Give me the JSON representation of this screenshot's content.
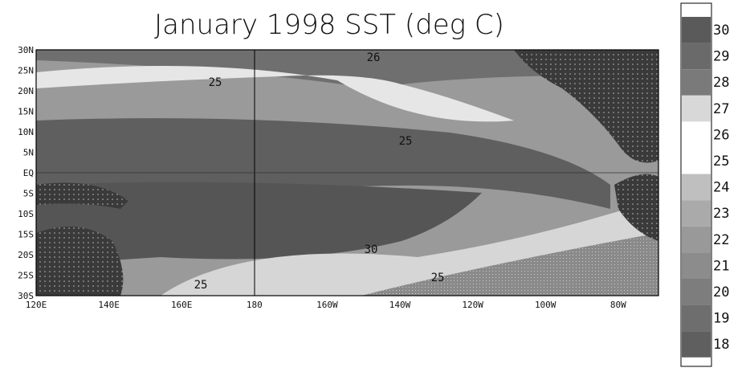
{
  "title": "January 1998 SST (deg C)",
  "lat_labels": [
    "30N",
    "25N",
    "20N",
    "15N",
    "10N",
    "5N",
    "EQ",
    "5S",
    "10S",
    "15S",
    "20S",
    "25S",
    "30S"
  ],
  "lon_labels": [
    "120E",
    "140E",
    "160E",
    "180",
    "160W",
    "140W",
    "120W",
    "100W",
    "80W"
  ],
  "colorbar_labels": [
    "30",
    "29",
    "28",
    "27",
    "26",
    "25",
    "24",
    "23",
    "22",
    "21",
    "20",
    "19",
    "18"
  ],
  "contour_labels": [
    "26",
    "25",
    "25",
    "30",
    "25",
    "25"
  ]
}
